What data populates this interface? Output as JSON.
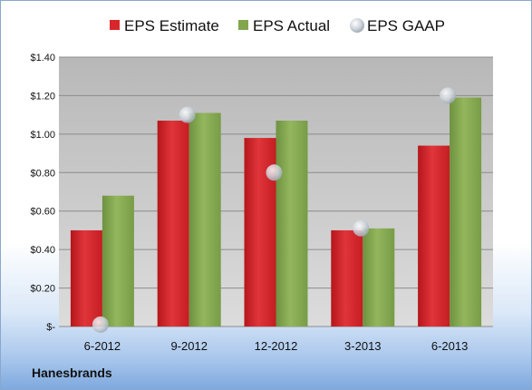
{
  "company": "Hanesbrands",
  "chart_data": {
    "type": "bar",
    "categories": [
      "6-2012",
      "9-2012",
      "12-2012",
      "3-2013",
      "6-2013"
    ],
    "series": [
      {
        "name": "EPS Estimate",
        "kind": "bar",
        "color": "#d9262b",
        "values": [
          0.5,
          1.07,
          0.98,
          0.5,
          0.94
        ]
      },
      {
        "name": "EPS Actual",
        "kind": "bar",
        "color": "#82a64e",
        "values": [
          0.68,
          1.11,
          1.07,
          0.51,
          1.19
        ]
      },
      {
        "name": "EPS GAAP",
        "kind": "marker",
        "color": "#c6cfda",
        "values": [
          0.01,
          1.1,
          0.8,
          0.51,
          1.2
        ]
      }
    ],
    "ylim": [
      0,
      1.4
    ],
    "yticks": [
      0,
      0.2,
      0.4,
      0.6,
      0.8,
      1.0,
      1.2,
      1.4
    ],
    "ytick_labels": [
      "$-",
      "$0.20",
      "$0.40",
      "$0.60",
      "$0.80",
      "$1.00",
      "$1.20",
      "$1.40"
    ],
    "grid": true,
    "legend_position": "top"
  }
}
